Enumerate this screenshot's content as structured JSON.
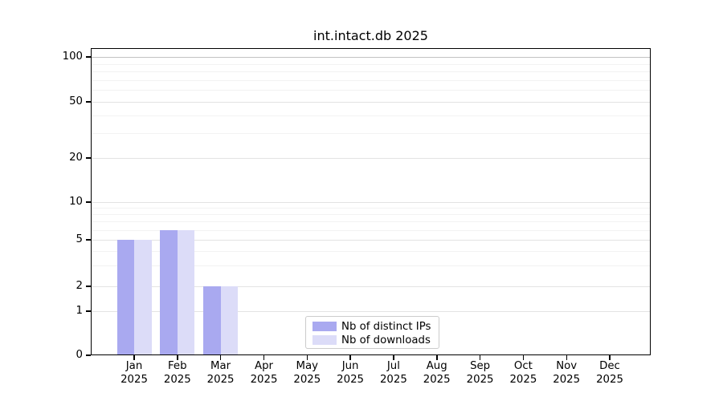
{
  "figure": {
    "background": "#ffffff"
  },
  "chart_data": {
    "type": "bar",
    "title": "int.intact.db 2025",
    "categories": [
      "Jan",
      "Feb",
      "Mar",
      "Apr",
      "May",
      "Jun",
      "Jul",
      "Aug",
      "Sep",
      "Oct",
      "Nov",
      "Dec"
    ],
    "category_year": "2025",
    "series": [
      {
        "name": "Nb of distinct IPs",
        "color": "#a9a9f0",
        "values": [
          5,
          6,
          2,
          0,
          0,
          0,
          0,
          0,
          0,
          0,
          0,
          0
        ]
      },
      {
        "name": "Nb of downloads",
        "color": "#dcdcf8",
        "values": [
          5,
          6,
          2,
          0,
          0,
          0,
          0,
          0,
          0,
          0,
          0,
          0
        ]
      }
    ],
    "yscale": "symlog",
    "ylim": [
      0,
      115
    ],
    "yticks": [
      0,
      1,
      2,
      5,
      10,
      20,
      50,
      100
    ],
    "ytick_labels": [
      "0",
      "1",
      "2",
      "5",
      "10",
      "20",
      "50",
      "100"
    ],
    "minor_yticks": [
      3,
      4,
      6,
      7,
      8,
      9,
      30,
      40,
      60,
      70,
      80,
      90
    ],
    "grid": true,
    "legend": {
      "position": "lower-center",
      "entries": [
        "Nb of distinct IPs",
        "Nb of downloads"
      ]
    },
    "colors": {
      "grid_top": "#c3c3c3",
      "grid_major": "#e3e3e3",
      "grid_minor": "#f2f2f2",
      "axis": "#000000",
      "legend_border": "#cccccc",
      "text": "#000000"
    }
  }
}
